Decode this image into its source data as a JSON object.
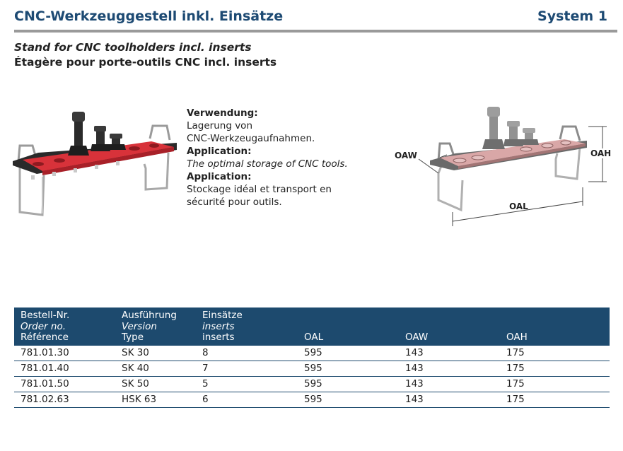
{
  "header": {
    "title": "CNC-Werkzeuggestell inkl.  Einsätze",
    "system": "System 1"
  },
  "subtitle": {
    "en": "Stand for CNC toolholders incl. inserts",
    "fr": "Étagère pour porte-outils CNC incl. inserts"
  },
  "description": {
    "de_heading": "Verwendung:",
    "de_text_1": "Lagerung von",
    "de_text_2": "CNC-Werkzeugaufnahmen.",
    "en_heading": "Application:",
    "en_text": "The optimal storage of CNC tools.",
    "fr_heading": "Application:",
    "fr_text_1": "Stockage idéal et transport en",
    "fr_text_2": "sécurité pour outils."
  },
  "dimensions": {
    "oaw": "OAW",
    "oah": "OAH",
    "oal": "OAL"
  },
  "table": {
    "headers": {
      "col1": [
        "Bestell-Nr.",
        "Order no.",
        "Référence"
      ],
      "col2": [
        "Ausführung",
        "Version",
        "Type"
      ],
      "col3": [
        "Einsätze",
        "inserts",
        "inserts"
      ],
      "col4": "OAL",
      "col5": "OAW",
      "col6": "OAH"
    },
    "rows": [
      [
        "781.01.30",
        "SK 30",
        "8",
        "595",
        "143",
        "175"
      ],
      [
        "781.01.40",
        "SK 40",
        "7",
        "595",
        "143",
        "175"
      ],
      [
        "781.01.50",
        "SK 50",
        "5",
        "595",
        "143",
        "175"
      ],
      [
        "781.02.63",
        "HSK 63",
        "6",
        "595",
        "143",
        "175"
      ]
    ]
  },
  "colors": {
    "header_text": "#1d4a73",
    "table_header_bg": "#1d4a6e",
    "rack_red": "#d8323a",
    "rule_gray": "#9a9a9a"
  }
}
